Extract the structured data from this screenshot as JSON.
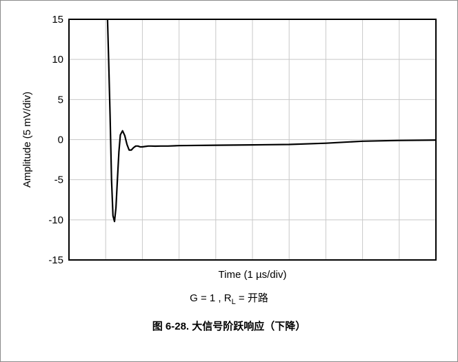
{
  "chart_data": {
    "type": "line",
    "xlabel": "Time (1 µs/div)",
    "ylabel": "Amplitude (5 mV/div)",
    "ylim": [
      -15,
      15
    ],
    "yticks": [
      15,
      10,
      5,
      0,
      -5,
      -10,
      -15
    ],
    "ytick_labels": [
      "15",
      "10",
      "5",
      "0",
      "-5",
      "-10",
      "-15"
    ],
    "xlim": [
      0,
      10
    ],
    "x_divisions": 10,
    "grid": true,
    "line_color": "#000000",
    "series": [
      {
        "x": [
          1.05,
          1.08,
          1.12,
          1.16,
          1.2,
          1.24,
          1.28,
          1.32,
          1.36,
          1.4,
          1.46,
          1.52,
          1.58,
          1.64,
          1.7,
          1.76,
          1.82,
          1.88,
          1.94,
          2.0,
          2.08,
          2.16,
          2.24,
          2.35,
          2.5,
          2.7,
          3.0,
          4.0,
          5.0,
          6.0,
          7.0,
          8.0,
          9.0,
          10.0
        ],
        "y": [
          15.0,
          10.0,
          3.0,
          -5.0,
          -9.5,
          -10.2,
          -8.5,
          -5.0,
          -1.5,
          0.6,
          1.1,
          0.5,
          -0.6,
          -1.3,
          -1.3,
          -1.0,
          -0.8,
          -0.8,
          -0.9,
          -0.9,
          -0.85,
          -0.8,
          -0.8,
          -0.82,
          -0.8,
          -0.8,
          -0.75,
          -0.7,
          -0.65,
          -0.6,
          -0.45,
          -0.2,
          -0.1,
          -0.05
        ]
      }
    ]
  },
  "captions": {
    "condition_prefix": "G = 1 ,  R",
    "condition_sub": "L",
    "condition_suffix": " = 开路",
    "figure": "图 6-28. 大信号阶跃响应（下降）"
  }
}
